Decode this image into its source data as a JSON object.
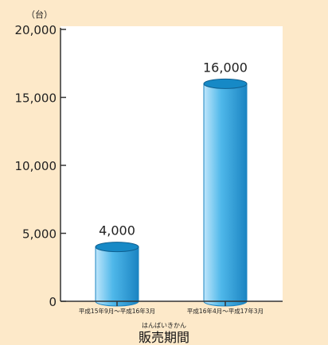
{
  "chart_data": {
    "type": "bar",
    "unit_label": "（台）",
    "xlabel_ruby": "はんばいきかん",
    "xlabel": "販売期間",
    "categories": [
      "平成15年9月～平成16年3月",
      "平成16年4月～平成17年3月"
    ],
    "values": [
      4000,
      16000
    ],
    "value_labels": [
      "4,000",
      "16,000"
    ],
    "ylim": [
      0,
      20000
    ],
    "yticks": [
      0,
      5000,
      10000,
      15000,
      20000
    ],
    "ytick_labels": [
      "0",
      "5,000",
      "10,000",
      "15,000",
      "20,000"
    ],
    "grid": false,
    "colors": {
      "background": "#fde9c9",
      "plot_background": "#ffffff",
      "bar_light": "#bfe6fb",
      "bar_mid": "#4fb8ea",
      "bar_dark": "#1b84c2",
      "bar_top": "#1689c6",
      "axis": "#333333"
    }
  }
}
